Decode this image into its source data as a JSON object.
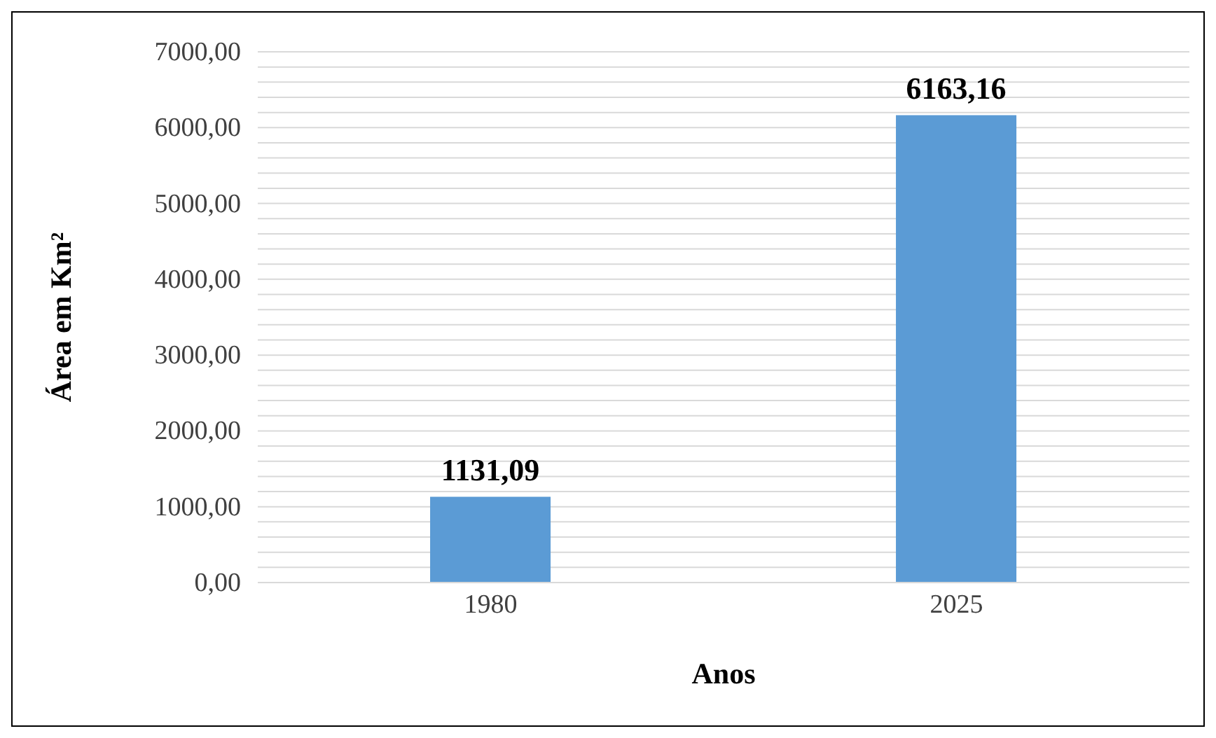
{
  "chart_data": {
    "type": "bar",
    "xlabel": "Anos",
    "ylabel": "Área em Km²",
    "categories": [
      "1980",
      "2025"
    ],
    "values": [
      1131.09,
      6163.16
    ],
    "value_labels": [
      "1131,09",
      "6163,16"
    ],
    "color": "#5b9bd5",
    "ylim": [
      0,
      7000
    ],
    "yticks": [
      {
        "value": 0,
        "label": "0,00"
      },
      {
        "value": 200,
        "label": null
      },
      {
        "value": 400,
        "label": null
      },
      {
        "value": 600,
        "label": null
      },
      {
        "value": 800,
        "label": null
      },
      {
        "value": 1000,
        "label": "1000,00"
      },
      {
        "value": 1200,
        "label": null
      },
      {
        "value": 1400,
        "label": null
      },
      {
        "value": 1600,
        "label": null
      },
      {
        "value": 1800,
        "label": null
      },
      {
        "value": 2000,
        "label": "2000,00"
      },
      {
        "value": 2200,
        "label": null
      },
      {
        "value": 2400,
        "label": null
      },
      {
        "value": 2600,
        "label": null
      },
      {
        "value": 2800,
        "label": null
      },
      {
        "value": 3000,
        "label": "3000,00"
      },
      {
        "value": 3200,
        "label": null
      },
      {
        "value": 3400,
        "label": null
      },
      {
        "value": 3600,
        "label": null
      },
      {
        "value": 3800,
        "label": null
      },
      {
        "value": 4000,
        "label": "4000,00"
      },
      {
        "value": 4200,
        "label": null
      },
      {
        "value": 4400,
        "label": null
      },
      {
        "value": 4600,
        "label": null
      },
      {
        "value": 4800,
        "label": null
      },
      {
        "value": 5000,
        "label": "5000,00"
      },
      {
        "value": 5200,
        "label": null
      },
      {
        "value": 5400,
        "label": null
      },
      {
        "value": 5600,
        "label": null
      },
      {
        "value": 5800,
        "label": null
      },
      {
        "value": 6000,
        "label": "6000,00"
      },
      {
        "value": 6200,
        "label": null
      },
      {
        "value": 6400,
        "label": null
      },
      {
        "value": 6600,
        "label": null
      },
      {
        "value": 6800,
        "label": null
      },
      {
        "value": 7000,
        "label": "7000,00"
      }
    ],
    "grid": "y",
    "legend": false
  }
}
